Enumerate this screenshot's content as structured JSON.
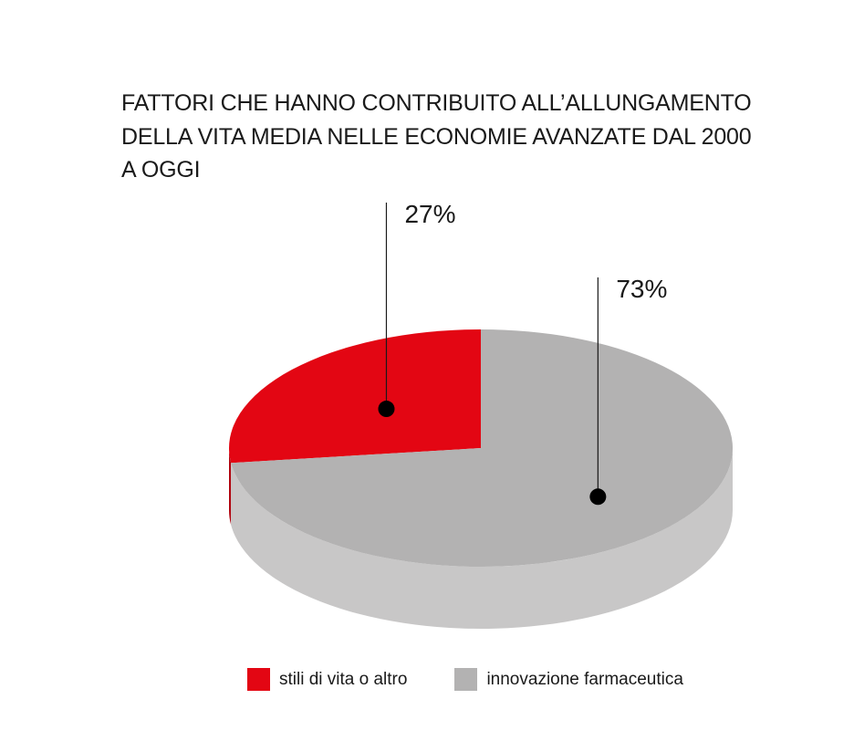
{
  "chart_data": {
    "type": "pie",
    "title_lines": [
      "FATTORI CHE HANNO CONTRIBUITO ALL’ALLUNGAMENTO",
      "DELLA VITA MEDIA NELLE ECONOMIE AVANZATE DAL 2000",
      "A OGGI"
    ],
    "slices": [
      {
        "label": "stili di vita o altro",
        "value": 27,
        "value_label": "27%",
        "color": "#e30613",
        "side_color": "#b0040f"
      },
      {
        "label": "innovazione farmaceutica",
        "value": 73,
        "value_label": "73%",
        "color": "#b3b2b2",
        "side_color": "#c8c7c7"
      }
    ],
    "legend_position": "bottom"
  }
}
